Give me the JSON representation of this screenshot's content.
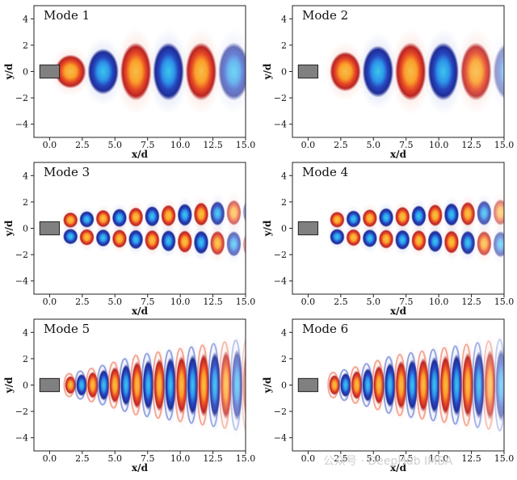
{
  "chart_data": {
    "type": "heatmap",
    "description_kind": "6 panels, 3 rows x 2 columns",
    "xlabel": "x/d",
    "ylabel": "y/d",
    "xlim": [
      -1.2,
      15.0
    ],
    "ylim": [
      -5.0,
      5.0
    ],
    "xticks": [
      0.0,
      2.5,
      5.0,
      7.5,
      10.0,
      12.5,
      15.0
    ],
    "xtick_labels": [
      "0.0",
      "2.5",
      "5.0",
      "7.5",
      "10.0",
      "12.5",
      "15.0"
    ],
    "yticks": [
      4,
      2,
      0,
      -2,
      -4
    ],
    "ytick_labels": [
      "4",
      "2",
      "0",
      "−2",
      "−4"
    ],
    "obstacle": {
      "shape": "square",
      "center_x": 0.0,
      "center_y": 0.0,
      "side": 1.0,
      "color": "#808080"
    },
    "colormap": {
      "positive": "#d4221e",
      "positive_peak": "#ffe24a",
      "negative": "#1a3ab8",
      "negative_peak": "#2ee8f5"
    },
    "panels": [
      {
        "title": "Mode 1",
        "symmetry": "symmetric",
        "wavelength": 5.0,
        "phase": 0.0
      },
      {
        "title": "Mode 2",
        "symmetry": "symmetric",
        "wavelength": 5.0,
        "phase": 1.25
      },
      {
        "title": "Mode 3",
        "symmetry": "antisymmetric",
        "wavelength": 2.5,
        "phase": 0.0
      },
      {
        "title": "Mode 4",
        "symmetry": "antisymmetric",
        "wavelength": 2.5,
        "phase": 0.625
      },
      {
        "title": "Mode 5",
        "symmetry": "symmetric",
        "wavelength": 1.7,
        "phase": 0.0
      },
      {
        "title": "Mode 6",
        "symmetry": "symmetric",
        "wavelength": 1.7,
        "phase": 0.42
      }
    ]
  },
  "watermark": "公众号 · DeepHub IMBA"
}
